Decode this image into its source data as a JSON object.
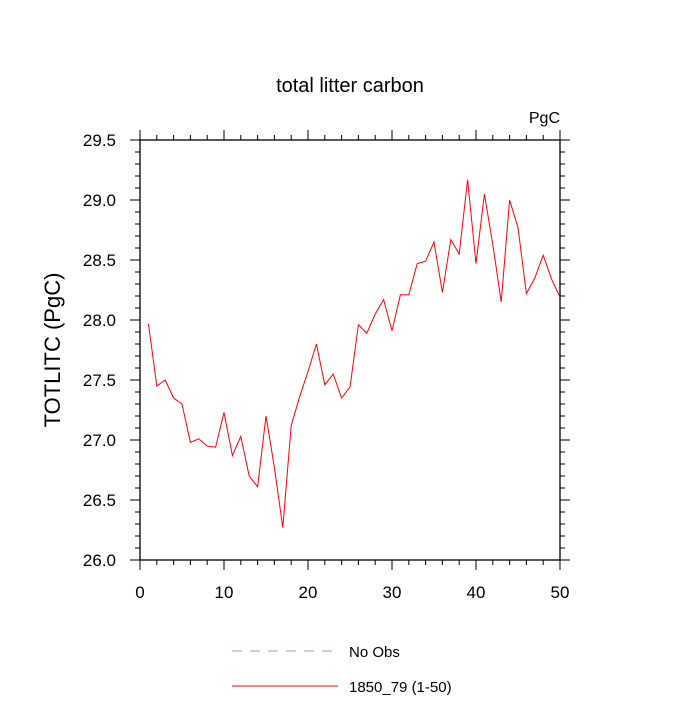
{
  "chart_data": {
    "type": "line",
    "title": "total litter carbon",
    "units_label": "PgC",
    "ylabel": "TOTLITC  (PgC)",
    "xlabel": "",
    "xlim": [
      0,
      50
    ],
    "ylim": [
      26.0,
      29.5
    ],
    "xticks": [
      0,
      10,
      20,
      30,
      40,
      50
    ],
    "yticks": [
      26.0,
      26.5,
      27.0,
      27.5,
      28.0,
      28.5,
      29.0,
      29.5
    ],
    "xtick_labels": [
      "0",
      "10",
      "20",
      "30",
      "40",
      "50"
    ],
    "ytick_labels": [
      "26.0",
      "26.5",
      "27.0",
      "27.5",
      "28.0",
      "28.5",
      "29.0",
      "29.5"
    ],
    "grid": false,
    "legend_position": "bottom-center",
    "series": [
      {
        "name": "1850_79 (1-50)",
        "color": "#ff0000",
        "style": "solid",
        "x": [
          1,
          2,
          3,
          4,
          5,
          6,
          7,
          8,
          9,
          10,
          11,
          12,
          13,
          14,
          15,
          16,
          17,
          18,
          19,
          20,
          21,
          22,
          23,
          24,
          25,
          26,
          27,
          28,
          29,
          30,
          31,
          32,
          33,
          34,
          35,
          36,
          37,
          38,
          39,
          40,
          41,
          42,
          43,
          44,
          45,
          46,
          47,
          48,
          49,
          50
        ],
        "values": [
          27.97,
          27.45,
          27.5,
          27.35,
          27.3,
          26.98,
          27.01,
          26.95,
          26.94,
          27.23,
          26.87,
          27.03,
          26.7,
          26.61,
          27.2,
          26.77,
          26.27,
          27.12,
          27.36,
          27.57,
          27.8,
          27.46,
          27.55,
          27.35,
          27.44,
          27.96,
          27.89,
          28.05,
          28.17,
          27.91,
          28.21,
          28.21,
          28.47,
          28.49,
          28.65,
          28.23,
          28.67,
          28.55,
          29.17,
          28.47,
          29.05,
          28.63,
          28.15,
          29.0,
          28.77,
          28.22,
          28.35,
          28.54,
          28.34,
          28.19
        ]
      }
    ],
    "legend": [
      {
        "label": "No Obs",
        "color": "#9999ee",
        "style": "dashed"
      },
      {
        "label": "1850_79 (1-50)",
        "color": "#ff0000",
        "style": "solid"
      }
    ]
  }
}
